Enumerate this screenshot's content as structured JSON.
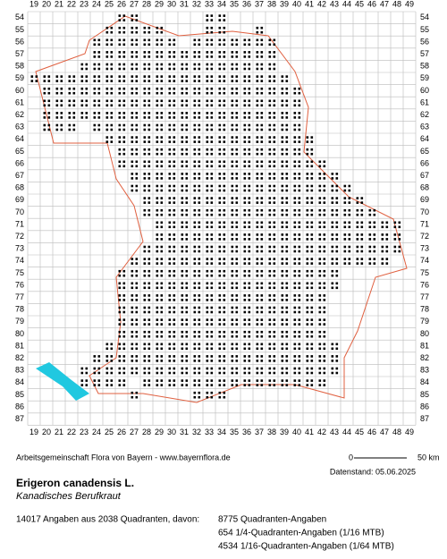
{
  "map": {
    "x_labels": [
      19,
      20,
      21,
      22,
      23,
      24,
      25,
      26,
      27,
      28,
      29,
      30,
      31,
      32,
      33,
      34,
      35,
      36,
      37,
      38,
      39,
      40,
      41,
      42,
      43,
      44,
      45,
      46,
      47,
      48,
      49
    ],
    "y_labels": [
      54,
      55,
      56,
      57,
      58,
      59,
      60,
      61,
      62,
      63,
      64,
      65,
      66,
      67,
      68,
      69,
      70,
      71,
      72,
      73,
      74,
      75,
      76,
      77,
      78,
      79,
      80,
      81,
      82,
      83,
      84,
      85,
      86,
      87
    ],
    "occupied": [
      [
        54,
        26,
        27
      ],
      [
        54,
        33,
        34
      ],
      [
        55,
        25,
        29
      ],
      [
        55,
        33,
        34
      ],
      [
        55,
        37,
        37
      ],
      [
        56,
        24,
        30
      ],
      [
        56,
        32,
        38
      ],
      [
        57,
        24,
        38
      ],
      [
        58,
        23,
        38
      ],
      [
        59,
        19,
        39
      ],
      [
        60,
        20,
        40
      ],
      [
        61,
        20,
        40
      ],
      [
        62,
        20,
        40
      ],
      [
        63,
        20,
        22
      ],
      [
        63,
        24,
        40
      ],
      [
        64,
        25,
        41
      ],
      [
        65,
        26,
        41
      ],
      [
        66,
        26,
        42
      ],
      [
        67,
        27,
        43
      ],
      [
        68,
        27,
        44
      ],
      [
        69,
        28,
        45
      ],
      [
        70,
        28,
        46
      ],
      [
        71,
        29,
        48
      ],
      [
        72,
        29,
        48
      ],
      [
        73,
        28,
        48
      ],
      [
        74,
        27,
        47
      ],
      [
        75,
        26,
        43
      ],
      [
        76,
        26,
        43
      ],
      [
        77,
        26,
        42
      ],
      [
        78,
        26,
        42
      ],
      [
        79,
        26,
        42
      ],
      [
        80,
        26,
        42
      ],
      [
        81,
        25,
        43
      ],
      [
        82,
        24,
        43
      ],
      [
        83,
        23,
        43
      ],
      [
        84,
        23,
        26
      ],
      [
        84,
        28,
        42
      ],
      [
        85,
        27,
        27
      ],
      [
        85,
        32,
        34
      ]
    ]
  },
  "credit": "Arbeitsgemeinschaft Flora von Bayern - www.bayernflora.de",
  "scale": {
    "start": "0",
    "end": "50 km"
  },
  "date": "Datenstand: 05.06.2025",
  "species": {
    "name": "Erigeron canadensis L.",
    "common": "Kanadisches Berufkraut"
  },
  "stats": {
    "summary": "14017 Angaben aus 2038 Quadranten, davon:",
    "lines": [
      "8775 Quadranten-Angaben",
      "654 1/4-Quadranten-Angaben (1/16 MTB)",
      "4534 1/16-Quadranten-Angaben (1/64 MTB)"
    ]
  }
}
